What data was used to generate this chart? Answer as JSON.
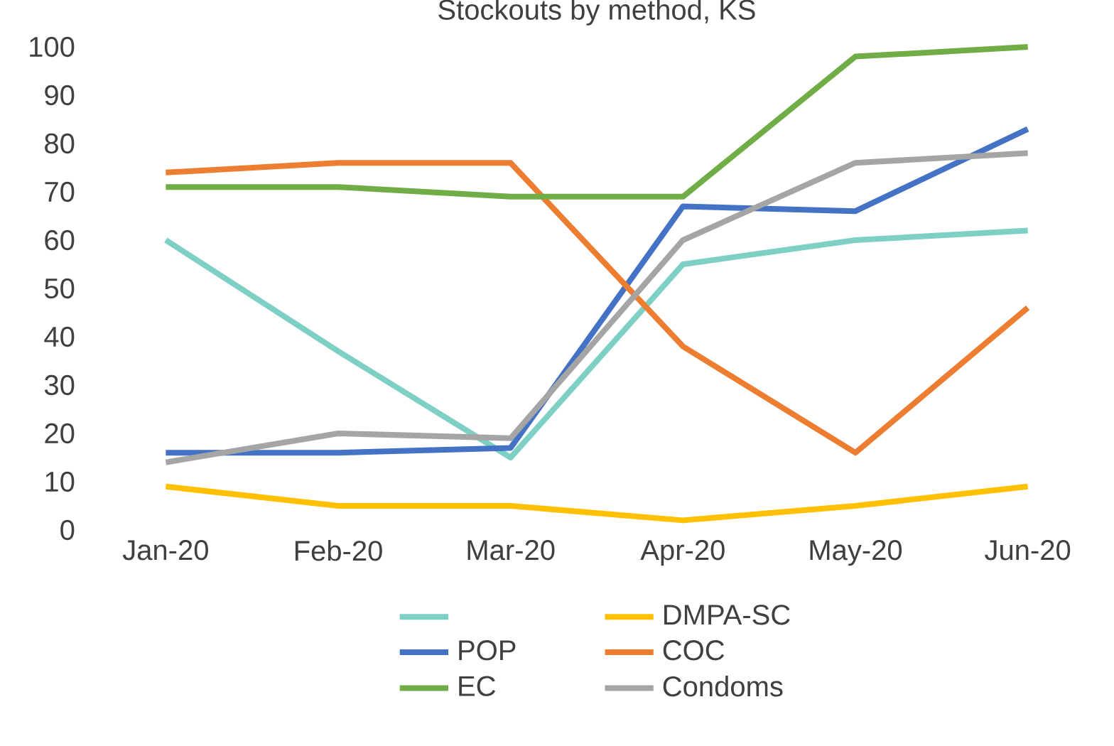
{
  "chart_data": {
    "type": "line",
    "title": "Stockouts by method, KS",
    "categories": [
      "Jan-20",
      "Feb-20",
      "Mar-20",
      "Apr-20",
      "May-20",
      "Jun-20"
    ],
    "series": [
      {
        "color": "#7ecfc4",
        "values": [
          60,
          37,
          15,
          55,
          60,
          62
        ]
      },
      {
        "name": "DMPA-SC",
        "color": "#ffc000",
        "values": [
          9,
          5,
          5,
          2,
          5,
          9
        ]
      },
      {
        "name": "POP",
        "color": "#4472c4",
        "values": [
          16,
          16,
          17,
          67,
          66,
          83
        ]
      },
      {
        "name": "COC",
        "color": "#ed7d31",
        "values": [
          74,
          76,
          76,
          38,
          16,
          46
        ]
      },
      {
        "name": "EC",
        "color": "#70ad47",
        "values": [
          71,
          71,
          69,
          69,
          98,
          100
        ]
      },
      {
        "name": "Condoms",
        "color": "#a5a5a5",
        "values": [
          14,
          20,
          19,
          60,
          76,
          78
        ]
      }
    ],
    "ylim": [
      0,
      100
    ],
    "yticks": [
      0,
      10,
      20,
      30,
      40,
      50,
      60,
      70,
      80,
      90,
      100
    ],
    "grid": false,
    "legend": "bottom",
    "line_style": "solid"
  }
}
